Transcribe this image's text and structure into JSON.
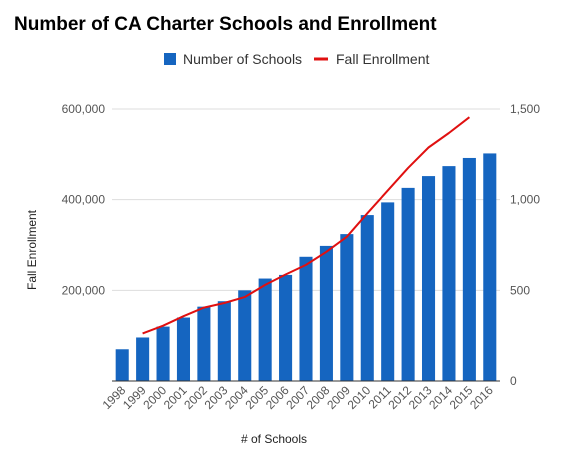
{
  "chart_data": {
    "type": "bar",
    "title": "Number of CA Charter Schools and Enrollment",
    "xlabel": "# of Schools",
    "ylabel": "Fall Enrollment",
    "ylabel_right": "",
    "categories": [
      "1998",
      "1999",
      "2000",
      "2001",
      "2002",
      "2003",
      "2004",
      "2005",
      "2006",
      "2007",
      "2008",
      "2009",
      "2010",
      "2011",
      "2012",
      "2013",
      "2014",
      "2015",
      "2016"
    ],
    "y_left_lim": [
      0,
      600000
    ],
    "y_left_ticks": [
      200000,
      400000,
      600000
    ],
    "y_left_tick_labels": [
      "200,000",
      "400,000",
      "600,000"
    ],
    "y_right_lim": [
      0,
      1500
    ],
    "y_right_ticks": [
      0,
      500,
      1000,
      1500
    ],
    "y_right_tick_labels": [
      "0",
      "500",
      "1,000",
      "1,500"
    ],
    "grid": true,
    "legend_position": "top",
    "series": [
      {
        "name": "Number of Schools",
        "type": "bar",
        "axis": "right",
        "color": "#1565c0",
        "values": [
          175,
          240,
          300,
          350,
          410,
          440,
          500,
          565,
          585,
          685,
          745,
          810,
          915,
          985,
          1065,
          1130,
          1185,
          1230,
          1255
        ]
      },
      {
        "name": "Fall Enrollment",
        "type": "line",
        "axis": "left",
        "color": "#e01010",
        "values": [
          null,
          105000,
          122000,
          143000,
          162000,
          172000,
          185000,
          212000,
          235000,
          256000,
          285000,
          318000,
          370000,
          420000,
          470000,
          515000,
          547000,
          582000,
          null
        ]
      }
    ]
  }
}
